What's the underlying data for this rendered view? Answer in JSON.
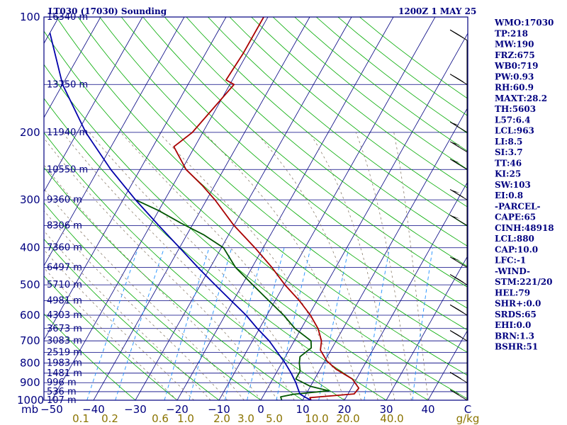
{
  "header": {
    "title": "LT030 (17030) Sounding",
    "time": "1200Z  1 MAY 25"
  },
  "indices": [
    "WMO:17030",
    "TP:218",
    "MW:190",
    "FRZ:675",
    "WB0:719",
    "PW:0.93",
    "RH:60.9",
    "MAXT:28.2",
    "TH:5603",
    "L57:6.4",
    "LCL:963",
    "LI:8.5",
    "SI:3.7",
    "TT:46",
    "KI:25",
    "SW:103",
    "EI:0.8",
    "-PARCEL-",
    "CAPE:65",
    "CINH:48918",
    "LCL:880",
    "CAP:10.0",
    "LFC:-1",
    "-WIND-",
    "STM:221/20",
    "HEL:79",
    "SHR+:0.0",
    "SRDS:65",
    "EHI:0.0",
    "BRN:1.3",
    "BSHR:51"
  ],
  "colors": {
    "frame": "#000080",
    "isobar": "#000080",
    "isotherm": "#000080",
    "dry_adiabat": "#00aa00",
    "moist_adiabat": "#8b7d6b",
    "mixing_ratio": "#1e90ff",
    "temperature": "#aa0000",
    "dewpoint": "#005500",
    "parcel": "#0000aa",
    "wind": "#000000",
    "mixing_label": "#8b7400"
  },
  "chart_data": {
    "type": "line",
    "title": "LT030 (17030) Sounding",
    "x_unit": "C",
    "y_unit": "mb",
    "y_scale": "log",
    "ylim": [
      1000,
      100
    ],
    "pressure_ticks": [
      100,
      200,
      300,
      400,
      500,
      600,
      700,
      800,
      900,
      1000
    ],
    "temperature_ticks": [
      -50,
      -40,
      -30,
      -20,
      -10,
      0,
      10,
      20,
      30,
      40
    ],
    "mixing_ratio_ticks": [
      "0.1",
      "0.2",
      "0.6",
      "1.0",
      "2.0",
      "3.0",
      "5.0",
      "10.0",
      "20.0",
      "40.0"
    ],
    "mixing_ratio_unit": "g/kg",
    "height_labels": [
      {
        "p": 100,
        "label": "16340 m"
      },
      {
        "p": 150,
        "label": "13750 m"
      },
      {
        "p": 200,
        "label": "11940 m"
      },
      {
        "p": 250,
        "label": "10550 m"
      },
      {
        "p": 300,
        "label": "9360 m"
      },
      {
        "p": 350,
        "label": "8306 m"
      },
      {
        "p": 400,
        "label": "7360 m"
      },
      {
        "p": 450,
        "label": "6497 m"
      },
      {
        "p": 500,
        "label": "5710 m"
      },
      {
        "p": 550,
        "label": "4981 m"
      },
      {
        "p": 600,
        "label": "4303 m"
      },
      {
        "p": 650,
        "label": "3673 m"
      },
      {
        "p": 700,
        "label": "3083 m"
      },
      {
        "p": 750,
        "label": "2519 m"
      },
      {
        "p": 800,
        "label": "1983 m"
      },
      {
        "p": 850,
        "label": "1481 m"
      },
      {
        "p": 900,
        "label": "996 m"
      },
      {
        "p": 950,
        "label": "536 m"
      },
      {
        "p": 1000,
        "label": "107 m"
      }
    ],
    "series": [
      {
        "role": "temperature",
        "points": [
          [
            1000,
            12.0
          ],
          [
            985,
            11.4
          ],
          [
            963,
            21.5
          ],
          [
            930,
            21.8
          ],
          [
            880,
            19.0
          ],
          [
            830,
            13.8
          ],
          [
            790,
            10.5
          ],
          [
            740,
            7.5
          ],
          [
            700,
            6.5
          ],
          [
            650,
            4.0
          ],
          [
            600,
            0.4
          ],
          [
            550,
            -4.2
          ],
          [
            500,
            -9.8
          ],
          [
            450,
            -15.3
          ],
          [
            400,
            -22.0
          ],
          [
            350,
            -30.0
          ],
          [
            300,
            -38.0
          ],
          [
            275,
            -43.0
          ],
          [
            250,
            -49.0
          ],
          [
            218,
            -55.0
          ],
          [
            200,
            -52.5
          ],
          [
            150,
            -49.0
          ],
          [
            146,
            -51.5
          ],
          [
            125,
            -51.0
          ],
          [
            100,
            -51.0
          ]
        ]
      },
      {
        "role": "dewpoint",
        "points": [
          [
            1000,
            5.0
          ],
          [
            980,
            4.3
          ],
          [
            965,
            7.0
          ],
          [
            945,
            15.0
          ],
          [
            920,
            10.0
          ],
          [
            880,
            5.5
          ],
          [
            840,
            5.5
          ],
          [
            800,
            4.2
          ],
          [
            770,
            3.5
          ],
          [
            730,
            5.0
          ],
          [
            700,
            4.0
          ],
          [
            650,
            -1.5
          ],
          [
            600,
            -6.0
          ],
          [
            550,
            -11.5
          ],
          [
            500,
            -17.5
          ],
          [
            450,
            -24.0
          ],
          [
            400,
            -29.5
          ],
          [
            370,
            -36.0
          ],
          [
            345,
            -43.0
          ],
          [
            320,
            -50.0
          ],
          [
            300,
            -57.0
          ]
        ]
      },
      {
        "role": "parcel",
        "points": [
          [
            1000,
            12.0
          ],
          [
            980,
            10.0
          ],
          [
            963,
            8.5
          ],
          [
            930,
            7.2
          ],
          [
            900,
            6.0
          ],
          [
            850,
            3.6
          ],
          [
            800,
            0.8
          ],
          [
            750,
            -2.5
          ],
          [
            700,
            -6.0
          ],
          [
            650,
            -10.5
          ],
          [
            600,
            -15.0
          ],
          [
            550,
            -20.5
          ],
          [
            500,
            -26.5
          ],
          [
            450,
            -33.0
          ],
          [
            400,
            -40.0
          ],
          [
            350,
            -48.0
          ],
          [
            300,
            -57.0
          ],
          [
            250,
            -67.0
          ],
          [
            200,
            -78.0
          ],
          [
            150,
            -90.0
          ],
          [
            110,
            -100.0
          ]
        ]
      }
    ],
    "wind_barbs": [
      {
        "p": 1000,
        "knots": 10
      },
      {
        "p": 900,
        "knots": 25
      },
      {
        "p": 700,
        "knots": 25
      },
      {
        "p": 600,
        "knots": 30
      },
      {
        "p": 500,
        "knots": 30
      },
      {
        "p": 450,
        "knots": 50
      },
      {
        "p": 350,
        "knots": 50
      },
      {
        "p": 300,
        "knots": 60
      },
      {
        "p": 250,
        "knots": 55
      },
      {
        "p": 225,
        "knots": 55
      },
      {
        "p": 200,
        "knots": 55
      },
      {
        "p": 150,
        "knots": 30
      },
      {
        "p": 115,
        "knots": 30
      }
    ]
  }
}
